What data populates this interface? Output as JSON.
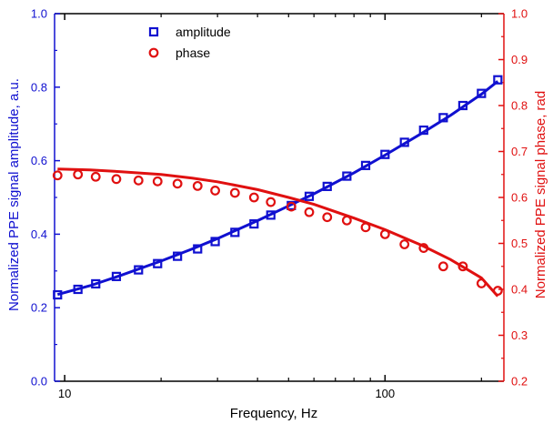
{
  "chart_data": {
    "type": "scatter",
    "xlabel": "Frequency, Hz",
    "ylabel_left": "Normalized PPE signal amplitude, a.u.",
    "ylabel_right": "Normalized PPE signal phase, rad",
    "x_scale": "log",
    "xlim": [
      9.3,
      235
    ],
    "x_ticks": [
      10,
      100
    ],
    "ylim_left": [
      0.0,
      1.0
    ],
    "yticks_left": [
      "0.0",
      "0.2",
      "0.4",
      "0.6",
      "0.8",
      "1.0"
    ],
    "ylim_right": [
      0.2,
      1.0
    ],
    "yticks_right": [
      "0.2",
      "0.3",
      "0.4",
      "0.5",
      "0.6",
      "0.7",
      "0.8",
      "0.9",
      "1.0"
    ],
    "legend_position": "top-left",
    "colors": {
      "amplitude": "#1010d0",
      "phase": "#e01010",
      "frame": "#000000"
    },
    "series": [
      {
        "name": "amplitude",
        "axis": "left",
        "marker": "square",
        "x": [
          9.5,
          11,
          12.5,
          14.5,
          17,
          19.5,
          22.5,
          26,
          29.5,
          34,
          39,
          44,
          51,
          58,
          66,
          76,
          87,
          100,
          115,
          132,
          152,
          175,
          200,
          225
        ],
        "y": [
          0.235,
          0.25,
          0.265,
          0.285,
          0.303,
          0.32,
          0.34,
          0.36,
          0.38,
          0.405,
          0.428,
          0.452,
          0.478,
          0.503,
          0.53,
          0.558,
          0.587,
          0.617,
          0.65,
          0.683,
          0.717,
          0.75,
          0.783,
          0.82
        ]
      },
      {
        "name": "phase",
        "axis": "right",
        "marker": "circle",
        "x": [
          9.5,
          11,
          12.5,
          14.5,
          17,
          19.5,
          22.5,
          26,
          29.5,
          34,
          39,
          44,
          51,
          58,
          66,
          76,
          87,
          100,
          115,
          132,
          152,
          175,
          200,
          225
        ],
        "y": [
          0.648,
          0.65,
          0.645,
          0.64,
          0.637,
          0.635,
          0.63,
          0.625,
          0.615,
          0.61,
          0.6,
          0.59,
          0.58,
          0.568,
          0.557,
          0.55,
          0.535,
          0.52,
          0.498,
          0.49,
          0.45,
          0.45,
          0.413,
          0.397
        ]
      }
    ],
    "fits": [
      {
        "name": "amplitude-fit",
        "axis": "left",
        "x": [
          9.5,
          12,
          15,
          20,
          25,
          30,
          40,
          50,
          60,
          80,
          100,
          130,
          160,
          200,
          225
        ],
        "y": [
          0.236,
          0.26,
          0.288,
          0.327,
          0.36,
          0.388,
          0.437,
          0.477,
          0.51,
          0.567,
          0.615,
          0.674,
          0.723,
          0.781,
          0.816
        ]
      },
      {
        "name": "phase-fit",
        "axis": "right",
        "x": [
          9.5,
          12,
          15,
          20,
          25,
          30,
          40,
          50,
          60,
          80,
          100,
          130,
          160,
          200,
          225
        ],
        "y": [
          0.662,
          0.66,
          0.656,
          0.65,
          0.642,
          0.634,
          0.617,
          0.6,
          0.585,
          0.555,
          0.53,
          0.496,
          0.465,
          0.425,
          0.385
        ]
      }
    ]
  }
}
